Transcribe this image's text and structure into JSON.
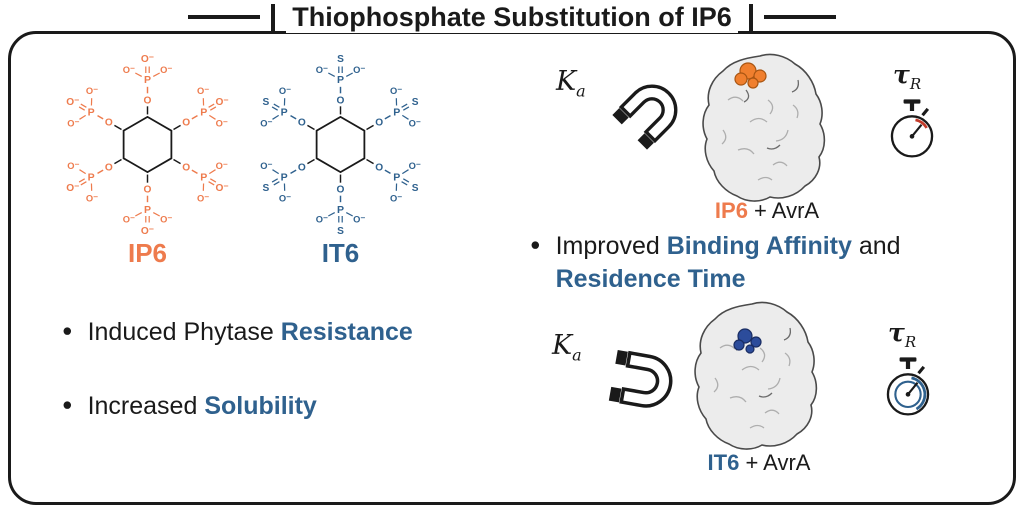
{
  "title": "Thiophosphate Substitution of IP6",
  "colors": {
    "orange": "#EE7B4D",
    "blue": "#2F618E",
    "ink": "#1A1A1A",
    "red": "#C23B2A"
  },
  "molecules": {
    "atoms": {
      "o": "O",
      "p": "P",
      "o_minus": "O⁻",
      "s": "S"
    },
    "items": [
      {
        "id": "ip6",
        "name": "IP6",
        "color": "#EE7B4D",
        "terminal": "O⁻",
        "angles": [
          90,
          150,
          210,
          270,
          330,
          30
        ]
      },
      {
        "id": "it6",
        "name": "IT6",
        "color": "#2F618E",
        "terminal": "S",
        "angles": [
          90,
          150,
          210,
          270,
          330,
          30
        ]
      }
    ]
  },
  "bullets": {
    "marker": "●",
    "items": [
      {
        "pre": "Induced Phytase ",
        "highlight": "Resistance"
      },
      {
        "pre": "Increased ",
        "highlight": "Solubility"
      }
    ]
  },
  "binding": {
    "ka": {
      "symbol": "K",
      "sub": "a"
    },
    "tau": {
      "symbol": "τ",
      "sub": "R"
    },
    "finding": {
      "marker": "●",
      "pre": "Improved ",
      "hl1": "Binding Affinity",
      "mid": " and",
      "hl2": "Residence Time"
    },
    "panels": [
      {
        "ligand": "IP6",
        "rest": " + AvrA",
        "patch": "#F07F2E",
        "patch_stroke": "#A85512",
        "arc": "#C23B2A"
      },
      {
        "ligand": "IT6",
        "rest": " + AvrA",
        "patch": "#2C4C9B",
        "patch_stroke": "#1A2D63",
        "arc": "#2F618E"
      }
    ]
  }
}
